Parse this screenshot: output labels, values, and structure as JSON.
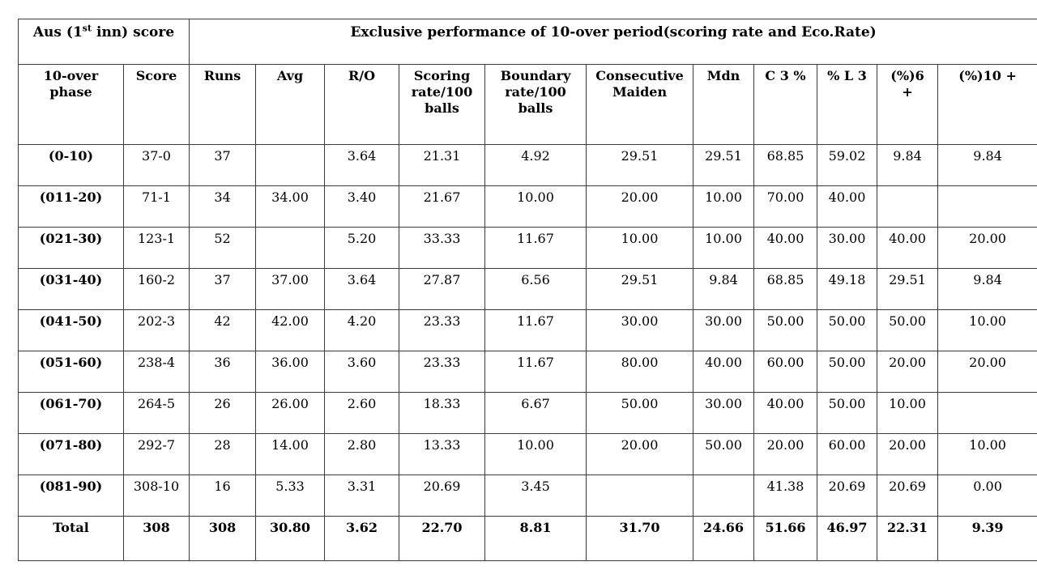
{
  "table": {
    "corner_header": {
      "pre": "Aus (1",
      "sup": "st",
      "post": " inn) score"
    },
    "main_header": "Exclusive performance of 10-over period(scoring rate and Eco.Rate)",
    "columns": [
      "10-over phase",
      "Score",
      "Runs",
      "Avg",
      "R/O",
      "Scoring rate/100 balls",
      "Boundary rate/100 balls",
      "Consecutive Maiden",
      "Mdn",
      "C 3 %",
      "% L 3",
      "(%)6 +",
      "(%)10 +"
    ],
    "rows": [
      [
        "(0-10)",
        "37-0",
        "37",
        "",
        "3.64",
        "21.31",
        "4.92",
        "29.51",
        "29.51",
        "68.85",
        "59.02",
        "9.84",
        "9.84"
      ],
      [
        "(011-20)",
        "71-1",
        "34",
        "34.00",
        "3.40",
        "21.67",
        "10.00",
        "20.00",
        "10.00",
        "70.00",
        "40.00",
        "",
        ""
      ],
      [
        "(021-30)",
        "123-1",
        "52",
        "",
        "5.20",
        "33.33",
        "11.67",
        "10.00",
        "10.00",
        "40.00",
        "30.00",
        "40.00",
        "20.00"
      ],
      [
        "(031-40)",
        "160-2",
        "37",
        "37.00",
        "3.64",
        "27.87",
        "6.56",
        "29.51",
        "9.84",
        "68.85",
        "49.18",
        "29.51",
        "9.84"
      ],
      [
        "(041-50)",
        "202-3",
        "42",
        "42.00",
        "4.20",
        "23.33",
        "11.67",
        "30.00",
        "30.00",
        "50.00",
        "50.00",
        "50.00",
        "10.00"
      ],
      [
        "(051-60)",
        "238-4",
        "36",
        "36.00",
        "3.60",
        "23.33",
        "11.67",
        "80.00",
        "40.00",
        "60.00",
        "50.00",
        "20.00",
        "20.00"
      ],
      [
        "(061-70)",
        "264-5",
        "26",
        "26.00",
        "2.60",
        "18.33",
        "6.67",
        "50.00",
        "30.00",
        "40.00",
        "50.00",
        "10.00",
        ""
      ],
      [
        "(071-80)",
        "292-7",
        "28",
        "14.00",
        "2.80",
        "13.33",
        "10.00",
        "20.00",
        "50.00",
        "20.00",
        "60.00",
        "20.00",
        "10.00"
      ],
      [
        "(081-90)",
        "308-10",
        "16",
        "5.33",
        "3.31",
        "20.69",
        "3.45",
        "",
        "",
        "41.38",
        "20.69",
        "20.69",
        "0.00"
      ]
    ],
    "total_row": [
      "Total",
      "308",
      "308",
      "30.80",
      "3.62",
      "22.70",
      "8.81",
      "31.70",
      "24.66",
      "51.66",
      "46.97",
      "22.31",
      "9.39"
    ]
  },
  "colors": {
    "background": "#ffffff",
    "text": "#000000",
    "border": "#3c3c3c"
  }
}
